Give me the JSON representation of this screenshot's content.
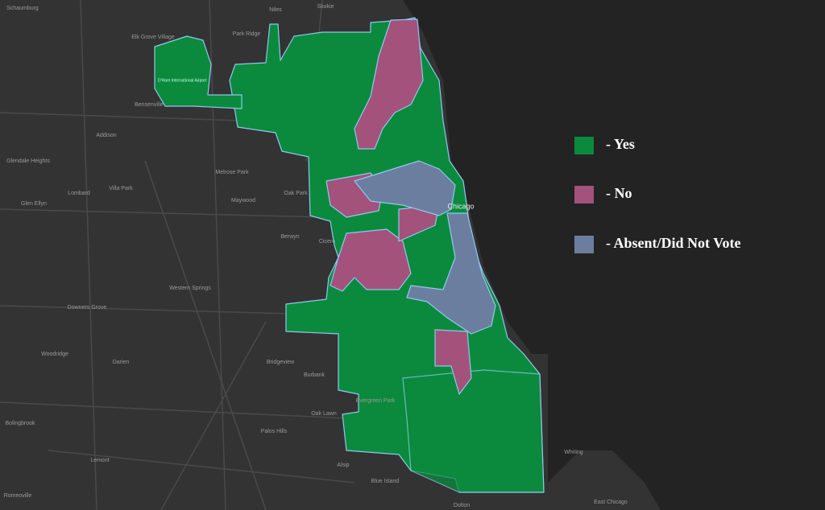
{
  "legend": [
    {
      "label": "- Yes",
      "color": "#0b8a3d"
    },
    {
      "label": "- No",
      "color": "#a3527c"
    },
    {
      "label": "- Absent/Did Not Vote",
      "color": "#6c7ea0"
    }
  ],
  "places": [
    "Niles",
    "Skokie",
    "Park Ridge",
    "Elk Grove Village",
    "Schaumburg",
    "O'Hare International Airport",
    "Bensenville",
    "Addison",
    "Glendale Heights",
    "Lombard",
    "Villa Park",
    "Glen Ellyn",
    "Melrose Park",
    "Maywood",
    "Oak Park",
    "Berwyn",
    "Cicero",
    "Chicago",
    "Western Springs",
    "Downers Grove",
    "Woodridge",
    "Darien",
    "Bridgeview",
    "Burbank",
    "Evergreen Park",
    "Oak Lawn",
    "Bolingbrook",
    "Palos Hills",
    "Lemont",
    "Alsip",
    "Blue Island",
    "Dolton",
    "Whiting",
    "East Chicago",
    "Romeoville"
  ]
}
